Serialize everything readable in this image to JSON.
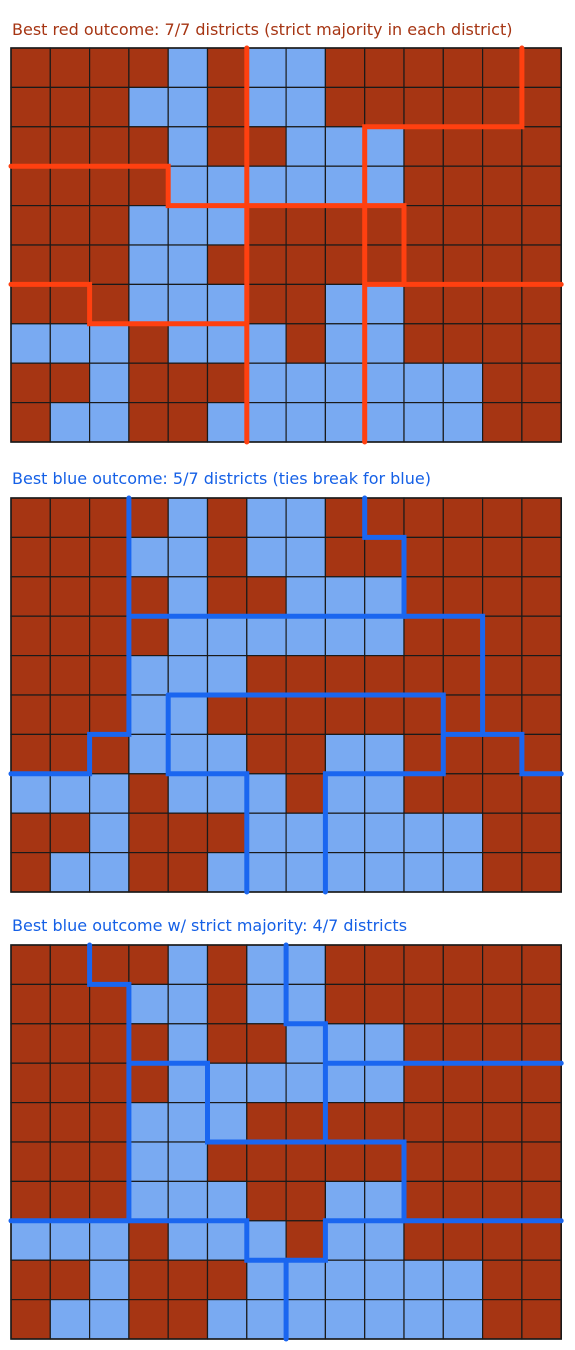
{
  "legend": {
    "red_color": "#a63513",
    "blue_color": "#79aaf2",
    "grid_line_color": "#1a1a1a"
  },
  "panels": [
    {
      "title": "Best red outcome: 7/7 districts (strict majority in each district)",
      "title_color": "#a63513",
      "boundary_color": "#ff4010",
      "red_districts_won": 7,
      "blue_districts_won": 0,
      "total_districts": 7
    },
    {
      "title": "Best blue outcome: 5/7 districts (ties break for blue)",
      "title_color": "#1560e6",
      "boundary_color": "#1a66f0",
      "red_districts_won": 2,
      "blue_districts_won": 5,
      "total_districts": 7
    },
    {
      "title": "Best blue outcome w/ strict majority: 4/7 districts",
      "title_color": "#1560e6",
      "boundary_color": "#1a66f0",
      "red_districts_won": 3,
      "blue_districts_won": 4,
      "total_districts": 7
    }
  ],
  "voter_grid": [
    "RRRRBRBBRRRRRR",
    "RRRBBRBBRRRRRR",
    "RRRRBRRBBBRRRR",
    "RRRRBBBBBBRRRR",
    "RRRBBBRRRRRRRR",
    "RRRBBRRRRRRRRR",
    "RRRBBBRRBBRRRR",
    "BBBRBBBRBBRRRR",
    "RRBRRRBBBBBBRR",
    "RBBRRBBBBBBBRR"
  ],
  "boundaries": [
    [
      [
        [
          6,
          0
        ],
        [
          6,
          10
        ]
      ],
      [
        [
          13,
          0
        ],
        [
          13,
          2
        ],
        [
          9,
          2
        ],
        [
          9,
          10
        ]
      ],
      [
        [
          0,
          3
        ],
        [
          4,
          3
        ],
        [
          4,
          4
        ],
        [
          10,
          4
        ],
        [
          10,
          6
        ],
        [
          14,
          6
        ]
      ],
      [
        [
          0,
          6
        ],
        [
          2,
          6
        ],
        [
          2,
          7
        ],
        [
          6,
          7
        ]
      ],
      [
        [
          9,
          6
        ],
        [
          10,
          6
        ]
      ]
    ],
    [
      [
        [
          3,
          0
        ],
        [
          3,
          6
        ],
        [
          2,
          6
        ],
        [
          2,
          7
        ],
        [
          0,
          7
        ]
      ],
      [
        [
          9,
          0
        ],
        [
          9,
          1
        ],
        [
          10,
          1
        ],
        [
          10,
          3
        ],
        [
          3,
          3
        ]
      ],
      [
        [
          10,
          3
        ],
        [
          12,
          3
        ],
        [
          12,
          6
        ],
        [
          13,
          6
        ],
        [
          13,
          7
        ],
        [
          14,
          7
        ]
      ],
      [
        [
          4,
          5
        ],
        [
          11,
          5
        ],
        [
          11,
          7
        ],
        [
          8,
          7
        ],
        [
          8,
          10
        ]
      ],
      [
        [
          4,
          5
        ],
        [
          4,
          7
        ],
        [
          6,
          7
        ],
        [
          6,
          10
        ]
      ],
      [
        [
          11,
          6
        ],
        [
          12,
          6
        ]
      ]
    ],
    [
      [
        [
          2,
          0
        ],
        [
          2,
          1
        ],
        [
          3,
          1
        ],
        [
          3,
          7
        ]
      ],
      [
        [
          7,
          0
        ],
        [
          7,
          2
        ],
        [
          8,
          2
        ],
        [
          8,
          5
        ]
      ],
      [
        [
          3,
          3
        ],
        [
          5,
          3
        ],
        [
          5,
          5
        ],
        [
          10,
          5
        ],
        [
          10,
          7
        ],
        [
          14,
          7
        ]
      ],
      [
        [
          8,
          3
        ],
        [
          14,
          3
        ]
      ],
      [
        [
          0,
          7
        ],
        [
          6,
          7
        ],
        [
          6,
          8
        ],
        [
          8,
          8
        ],
        [
          8,
          7
        ],
        [
          10,
          7
        ]
      ],
      [
        [
          7,
          8
        ],
        [
          7,
          10
        ]
      ]
    ]
  ]
}
